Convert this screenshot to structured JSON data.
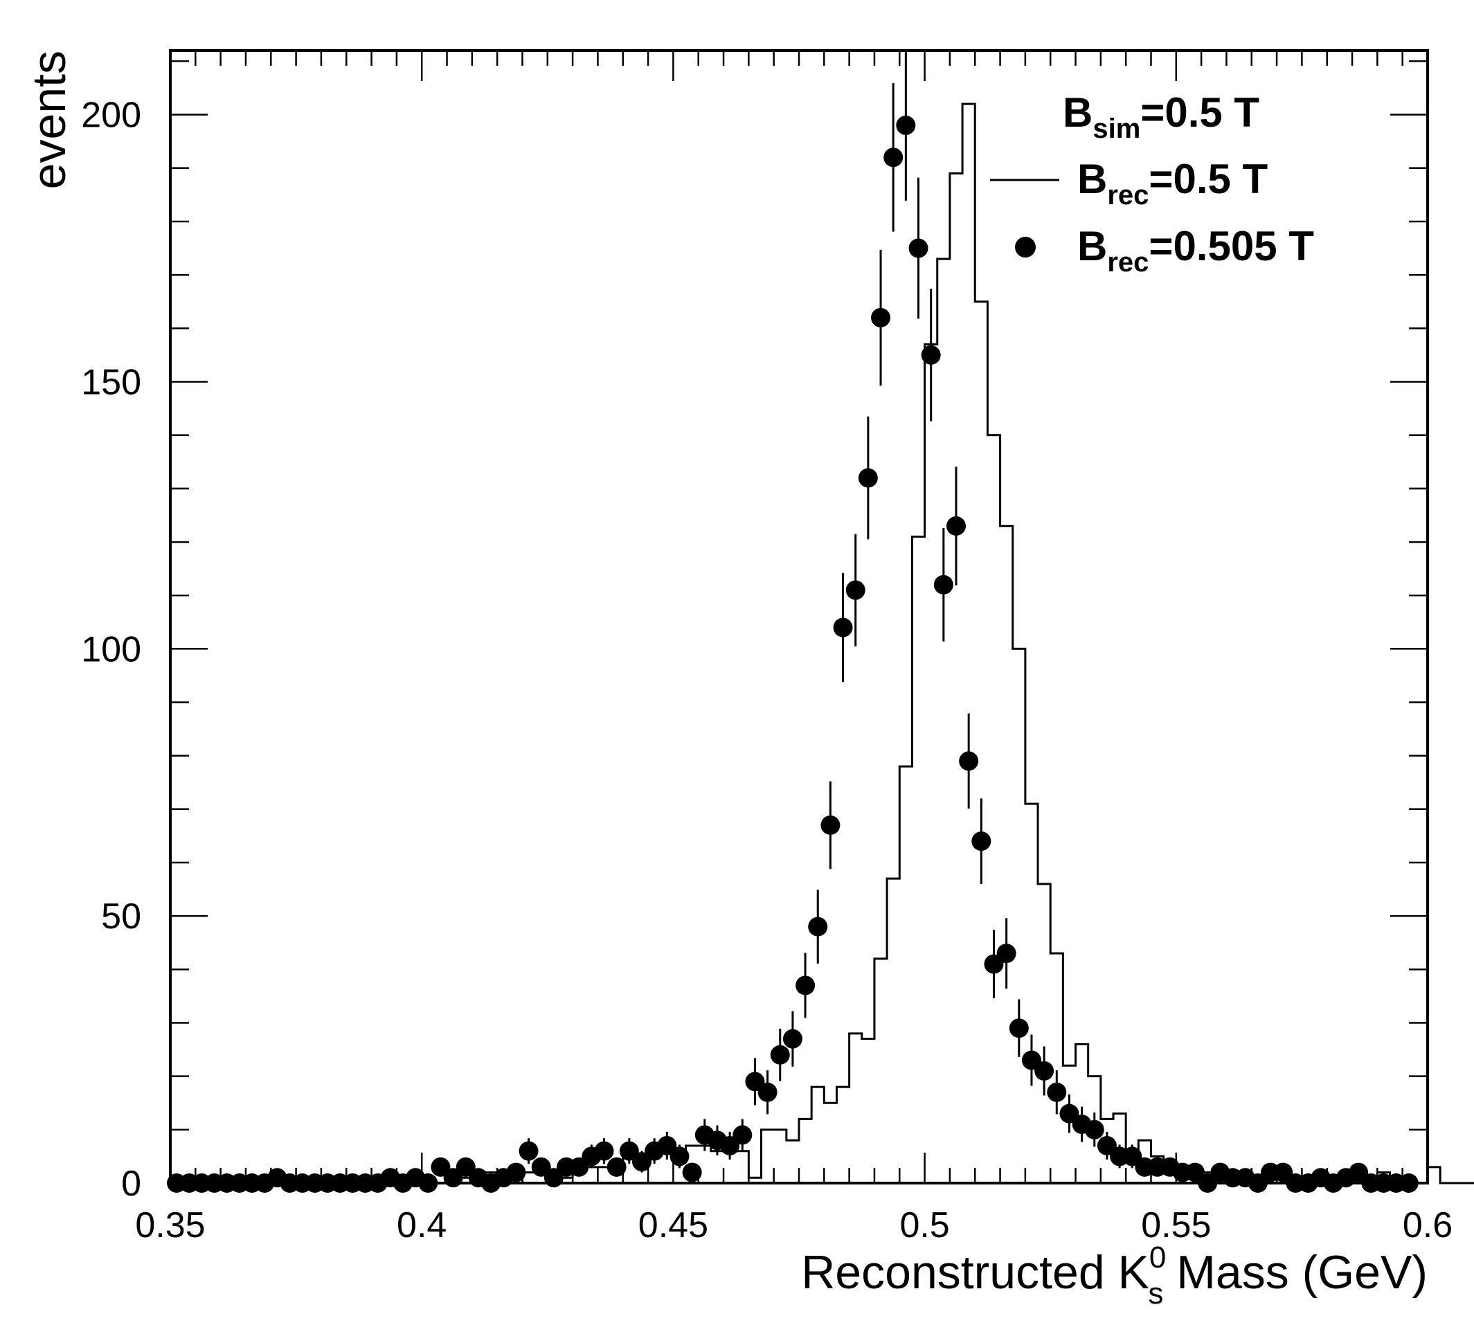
{
  "chart_data": {
    "type": "scatter",
    "title": "",
    "xlabel": {
      "main": "Reconstructed K",
      "sup": "0",
      "sub": "s",
      "tail": " Mass (GeV)"
    },
    "ylabel": "events",
    "xlim": [
      0.35,
      0.6
    ],
    "ylim": [
      0,
      212
    ],
    "x_ticks": [
      0.35,
      0.4,
      0.45,
      0.5,
      0.55,
      0.6
    ],
    "x_tick_labels": [
      "0.35",
      "0.4",
      "0.45",
      "0.5",
      "0.55",
      "0.6"
    ],
    "y_ticks": [
      0,
      50,
      100,
      150,
      200
    ],
    "y_tick_labels": [
      "0",
      "50",
      "100",
      "150",
      "200"
    ],
    "bin_width": 0.0025,
    "legend": {
      "position": "top-right",
      "entries": [
        {
          "base": "B",
          "sub": "sim",
          "tail": "=0.5 T",
          "marker": "none"
        },
        {
          "base": "B",
          "sub": "rec",
          "tail": "=0.5 T",
          "marker": "line"
        },
        {
          "base": "B",
          "sub": "rec",
          "tail": "=0.505 T",
          "marker": "dot"
        }
      ]
    },
    "series": [
      {
        "name": "Brec=0.5 T",
        "style": "histogram",
        "x_start": 0.35,
        "values": [
          0,
          0,
          0,
          0,
          0,
          0,
          0,
          0,
          1,
          0,
          0,
          0,
          0,
          0,
          0,
          0,
          0,
          0,
          1,
          0,
          1,
          0,
          1,
          1,
          2,
          2,
          1,
          0,
          2,
          3,
          2,
          1,
          2,
          3,
          3,
          4,
          5,
          4,
          5,
          6,
          6,
          7,
          7,
          6,
          6,
          6,
          1,
          10,
          10,
          8,
          12,
          18,
          15,
          18,
          28,
          27,
          42,
          57,
          78,
          121,
          157,
          173,
          189,
          202,
          165,
          140,
          123,
          100,
          71,
          56,
          43,
          22,
          26,
          20,
          12,
          13,
          4,
          8,
          5,
          3,
          3,
          3,
          2,
          3,
          2,
          1,
          1,
          1,
          0,
          1,
          0,
          0,
          1,
          1,
          0,
          0,
          2,
          0,
          1,
          0,
          3,
          0,
          0,
          0,
          0
        ]
      },
      {
        "name": "Brec=0.505 T",
        "style": "points",
        "x_start": 0.35125,
        "values": [
          0,
          0,
          0,
          0,
          0,
          0,
          0,
          0,
          1,
          0,
          0,
          0,
          0,
          0,
          0,
          0,
          0,
          1,
          0,
          1,
          0,
          3,
          1,
          3,
          1,
          0,
          1,
          2,
          6,
          3,
          1,
          3,
          3,
          5,
          6,
          3,
          6,
          4,
          6,
          7,
          5,
          2,
          9,
          8,
          7,
          9,
          19,
          17,
          24,
          27,
          37,
          48,
          67,
          104,
          111,
          132,
          162,
          192,
          198,
          175,
          155,
          112,
          123,
          79,
          64,
          41,
          43,
          29,
          23,
          21,
          17,
          13,
          11,
          10,
          7,
          5,
          5,
          3,
          3,
          3,
          2,
          2,
          0,
          2,
          1,
          1,
          0,
          2,
          2,
          0,
          0,
          1,
          0,
          1,
          2,
          0,
          0,
          0,
          0
        ],
        "errors": [
          0,
          0,
          0,
          0,
          0,
          0,
          0,
          0,
          1,
          0,
          0,
          0,
          0,
          0,
          0,
          0,
          0,
          1,
          0,
          1,
          0,
          1.7,
          1,
          1.7,
          1,
          0,
          1,
          1.4,
          2.4,
          1.7,
          1,
          1.7,
          1.7,
          2.2,
          2.4,
          1.7,
          2.4,
          2,
          2.4,
          2.6,
          2.2,
          1.4,
          3,
          2.8,
          2.6,
          3,
          4.4,
          4.1,
          4.9,
          5.2,
          6.1,
          6.9,
          8.2,
          10.2,
          10.5,
          11.5,
          12.7,
          13.9,
          14.1,
          13.2,
          12.4,
          10.6,
          11.1,
          8.9,
          8,
          6.4,
          6.6,
          5.4,
          4.8,
          4.6,
          4.1,
          3.6,
          3.3,
          3.2,
          2.6,
          2.2,
          2.2,
          1.7,
          1.7,
          1.7,
          1.4,
          1.4,
          0,
          1.4,
          1,
          1,
          0,
          1.4,
          1.4,
          0,
          0,
          1,
          0,
          1,
          1.4,
          0,
          0,
          0,
          0
        ]
      }
    ]
  }
}
